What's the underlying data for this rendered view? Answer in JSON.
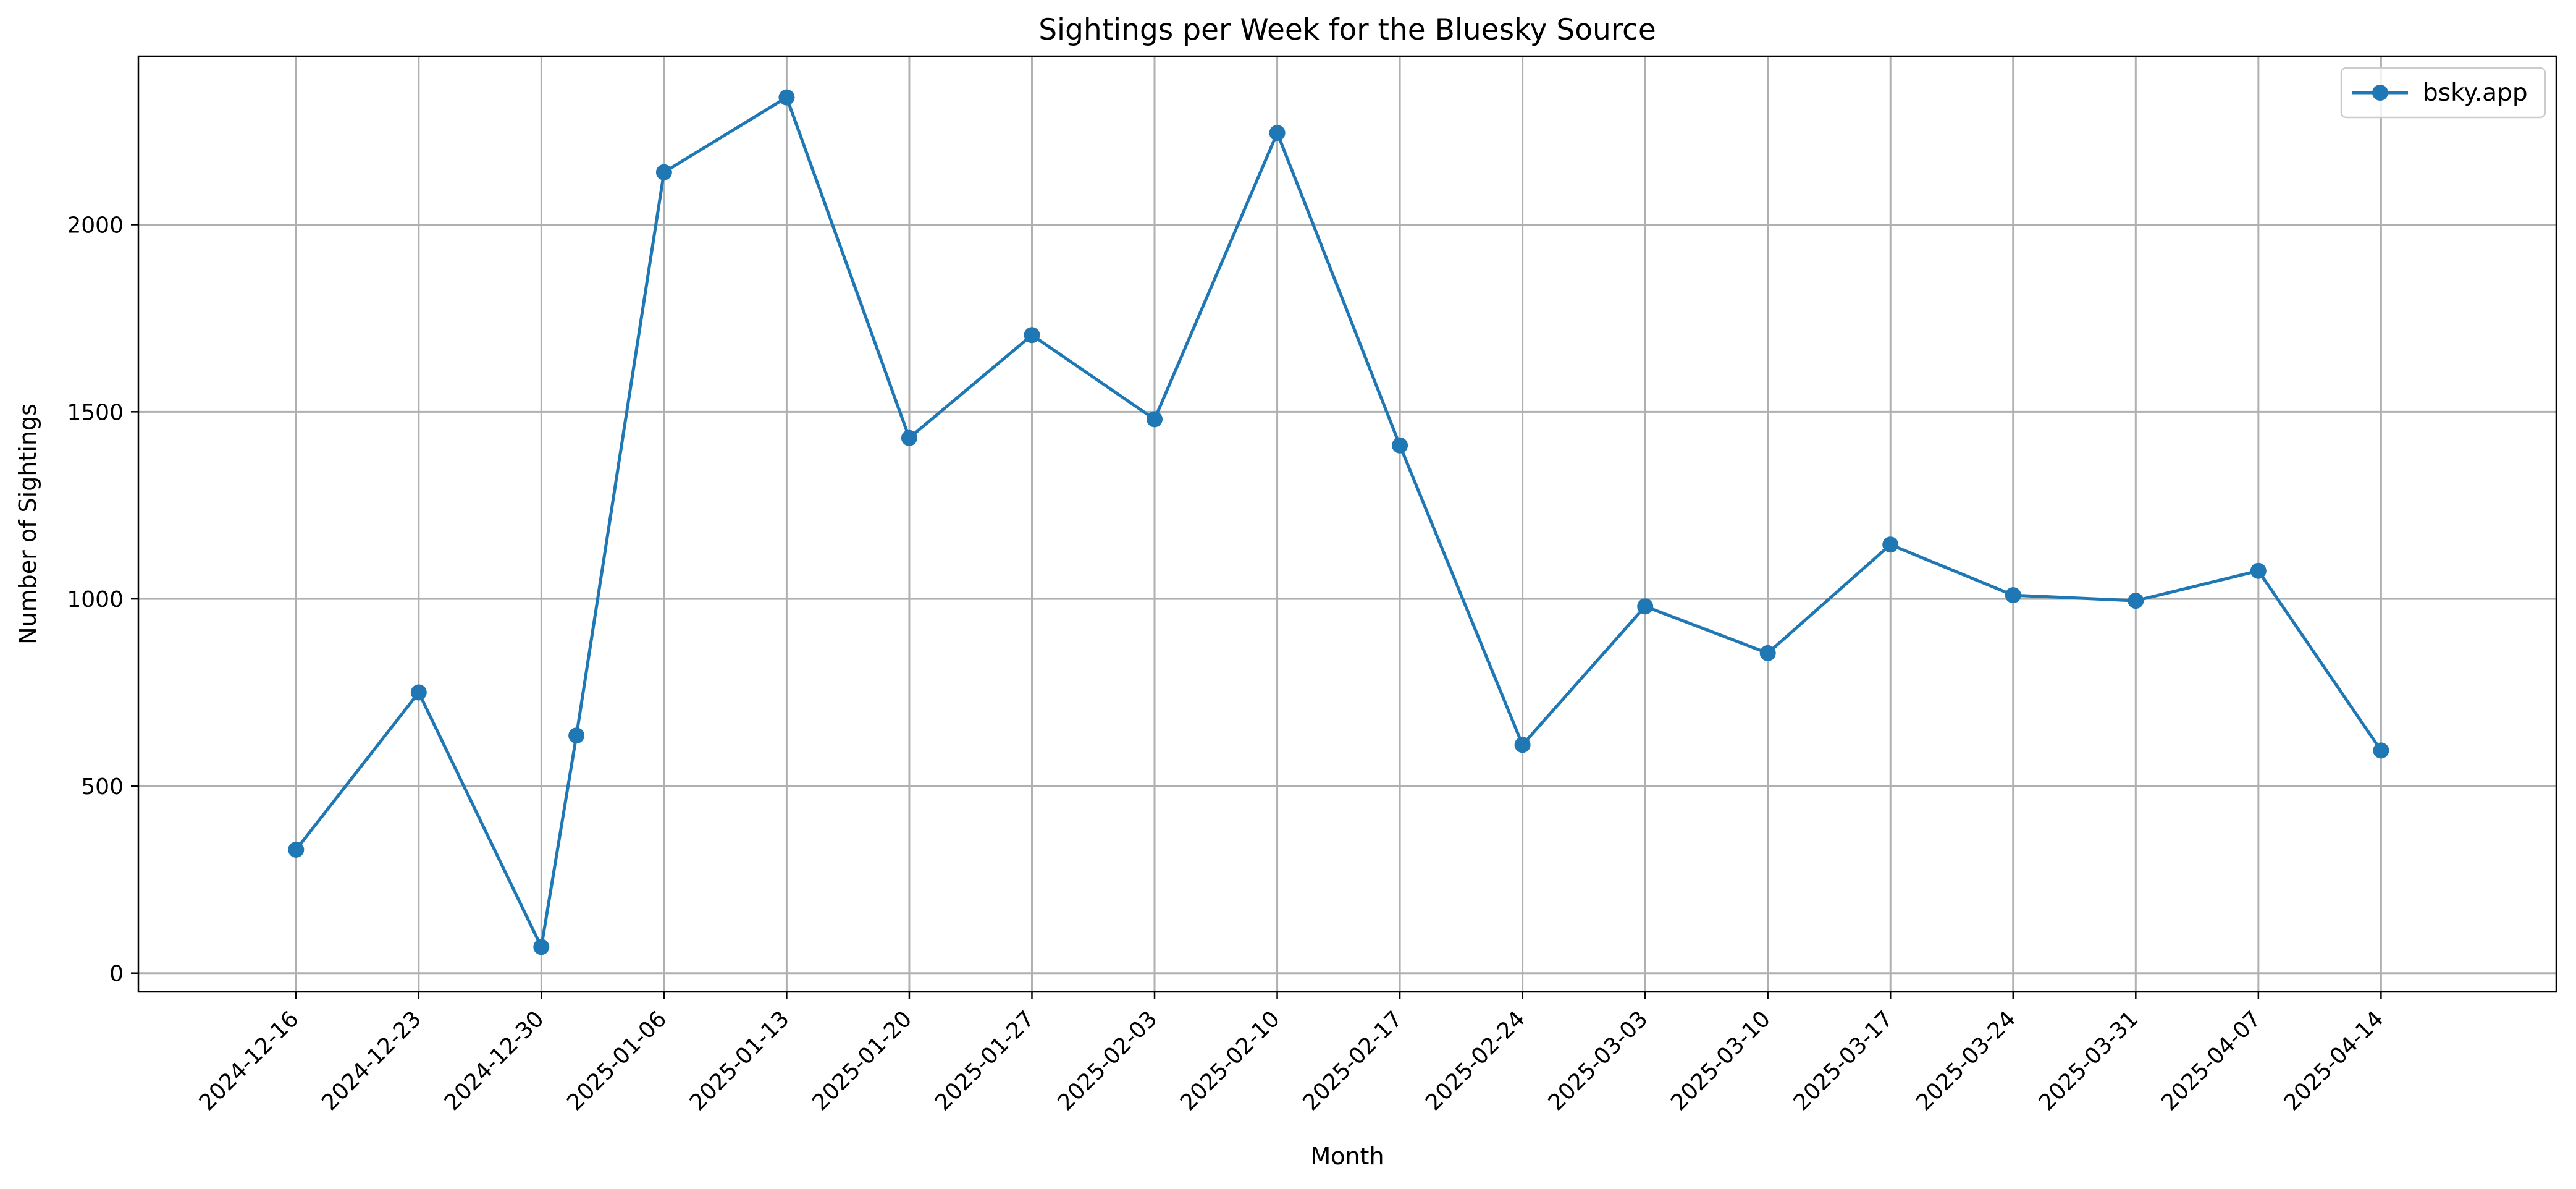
{
  "chart_data": {
    "type": "line",
    "title": "Sightings per Week for the Bluesky Source",
    "xlabel": "Month",
    "ylabel": "Number of Sightings",
    "x_ticks": [
      "2024-12-16",
      "2024-12-23",
      "2024-12-30",
      "2025-01-06",
      "2025-01-13",
      "2025-01-20",
      "2025-01-27",
      "2025-02-03",
      "2025-02-10",
      "2025-02-17",
      "2025-02-24",
      "2025-03-03",
      "2025-03-10",
      "2025-03-17",
      "2025-03-24",
      "2025-03-31",
      "2025-04-07",
      "2025-04-14"
    ],
    "y_ticks": [
      0,
      500,
      1000,
      1500,
      2000
    ],
    "xlim": [
      "2024-12-07",
      "2025-04-24"
    ],
    "ylim": [
      -50,
      2450
    ],
    "grid": true,
    "legend_position": "top-right",
    "series": [
      {
        "name": "bsky.app",
        "color": "#1f77b4",
        "marker": "circle",
        "points": [
          {
            "x": "2024-12-16",
            "y": 330
          },
          {
            "x": "2024-12-23",
            "y": 750
          },
          {
            "x": "2024-12-30",
            "y": 70
          },
          {
            "x": "2025-01-01",
            "y": 635
          },
          {
            "x": "2025-01-06",
            "y": 2140
          },
          {
            "x": "2025-01-13",
            "y": 2340
          },
          {
            "x": "2025-01-20",
            "y": 1430
          },
          {
            "x": "2025-01-27",
            "y": 1705
          },
          {
            "x": "2025-02-03",
            "y": 1480
          },
          {
            "x": "2025-02-10",
            "y": 2245
          },
          {
            "x": "2025-02-17",
            "y": 1410
          },
          {
            "x": "2025-02-24",
            "y": 610
          },
          {
            "x": "2025-03-03",
            "y": 980
          },
          {
            "x": "2025-03-10",
            "y": 855
          },
          {
            "x": "2025-03-17",
            "y": 1145
          },
          {
            "x": "2025-03-24",
            "y": 1010
          },
          {
            "x": "2025-03-31",
            "y": 995
          },
          {
            "x": "2025-04-07",
            "y": 1075
          },
          {
            "x": "2025-04-14",
            "y": 595
          }
        ]
      }
    ]
  }
}
